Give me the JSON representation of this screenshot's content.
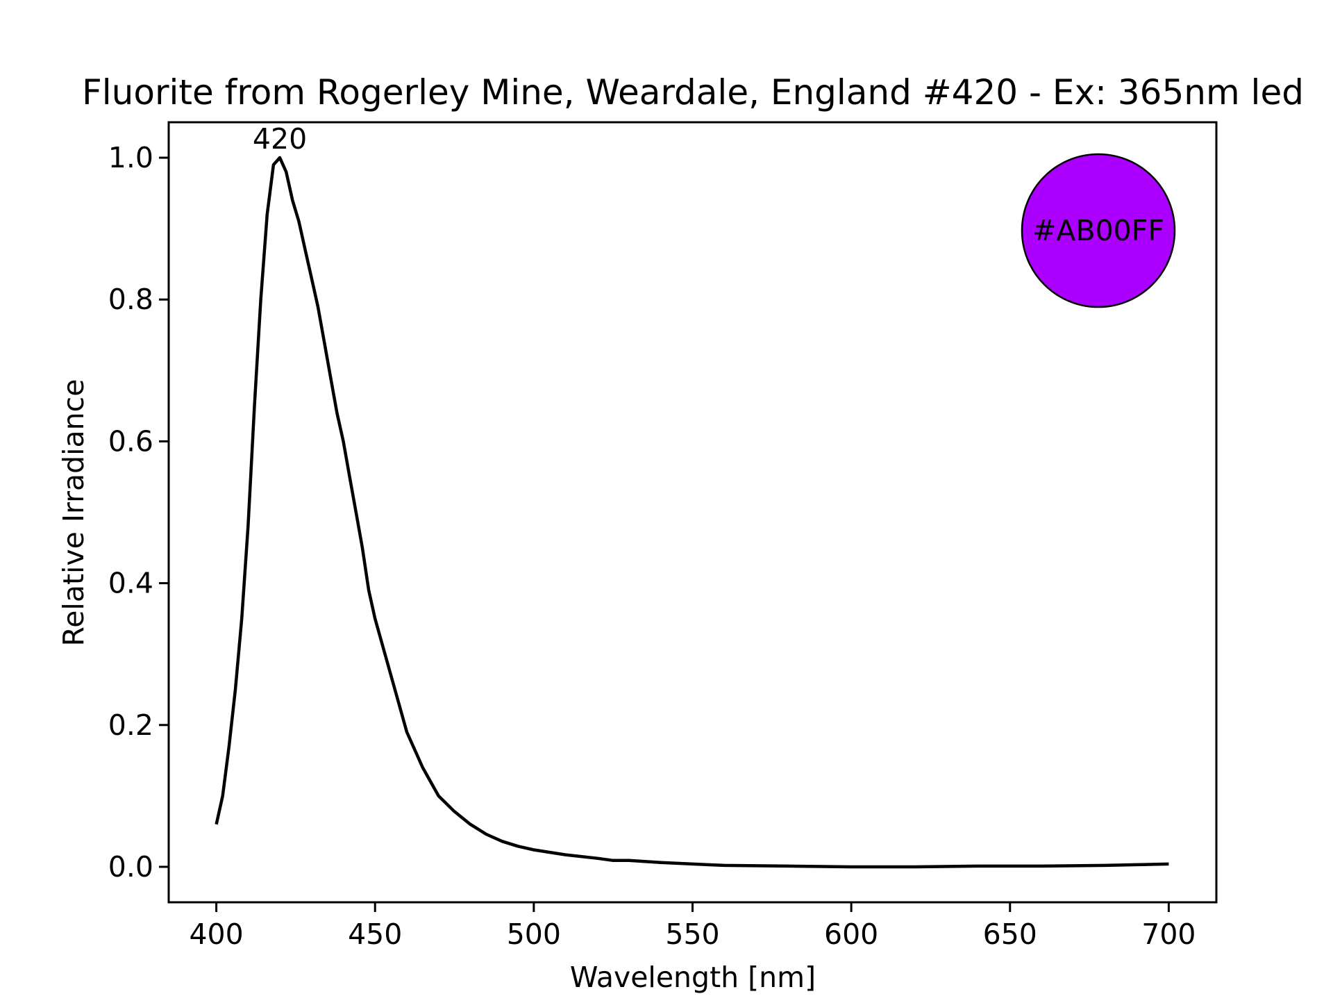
{
  "chart_data": {
    "type": "line",
    "title": "Fluorite from Rogerley Mine, Weardale, England #420 - Ex: 365nm led",
    "xlabel": "Wavelength [nm]",
    "ylabel": "Relative Irradiance",
    "x": [
      400,
      402,
      404,
      406,
      408,
      410,
      412,
      414,
      416,
      418,
      420,
      422,
      424,
      426,
      428,
      430,
      432,
      434,
      436,
      438,
      440,
      442,
      444,
      446,
      448,
      450,
      455,
      460,
      465,
      470,
      475,
      480,
      485,
      490,
      495,
      500,
      510,
      520,
      525,
      530,
      540,
      550,
      560,
      580,
      600,
      620,
      640,
      660,
      680,
      690,
      700
    ],
    "series": [
      {
        "name": "Spectrum",
        "color": "#000000",
        "values": [
          0.06,
          0.1,
          0.17,
          0.25,
          0.35,
          0.48,
          0.65,
          0.8,
          0.92,
          0.99,
          1.0,
          0.98,
          0.94,
          0.91,
          0.87,
          0.83,
          0.79,
          0.74,
          0.69,
          0.64,
          0.6,
          0.55,
          0.5,
          0.45,
          0.39,
          0.35,
          0.27,
          0.19,
          0.14,
          0.1,
          0.078,
          0.06,
          0.046,
          0.036,
          0.029,
          0.024,
          0.017,
          0.012,
          0.009,
          0.009,
          0.006,
          0.004,
          0.002,
          0.001,
          0.0,
          0.0,
          0.001,
          0.001,
          0.002,
          0.003,
          0.004
        ]
      }
    ],
    "annotations": [
      {
        "text": "420",
        "x": 420,
        "y": 1.0
      }
    ],
    "swatch_label": "#AB00FF",
    "swatch_color": "#AB00FF",
    "xlim": [
      385,
      715
    ],
    "ylim": [
      -0.05,
      1.05
    ],
    "xticks": [
      400,
      450,
      500,
      550,
      600,
      650,
      700
    ],
    "yticks": [
      {
        "value": 0,
        "label": "0.0"
      },
      {
        "value": 0.2,
        "label": "0.2"
      },
      {
        "value": 0.4,
        "label": "0.4"
      },
      {
        "value": 0.6,
        "label": "0.6"
      },
      {
        "value": 0.8,
        "label": "0.8"
      },
      {
        "value": 1,
        "label": "1.0"
      }
    ],
    "grid": false
  }
}
